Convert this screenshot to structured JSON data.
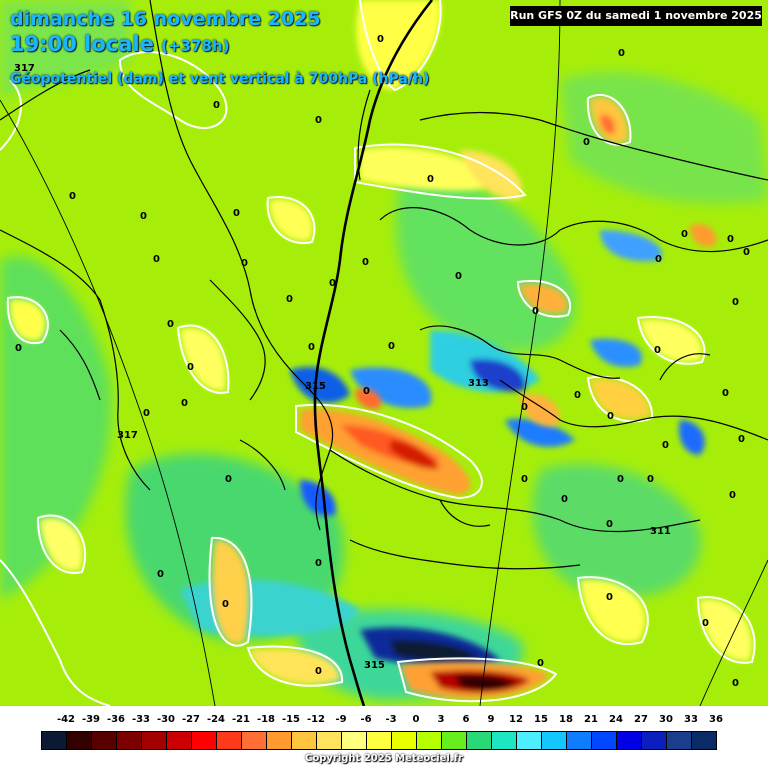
{
  "header": {
    "date_line": "dimanche 16 novembre 2025",
    "time_line": "19:00 locale",
    "lead_time": "(+378h)",
    "parameter_line": "Géopotentiel (dam) et vent vertical à 700hPa (hPa/h)"
  },
  "run_info": "Run GFS 0Z du samedi 1 novembre 2025",
  "copyright": "Copyright 2025 Meteociel.fr",
  "colorscale": {
    "labels": [
      "-42",
      "-39",
      "-36",
      "-33",
      "-30",
      "-27",
      "-24",
      "-21",
      "-18",
      "-15",
      "-12",
      "-9",
      "-6",
      "-3",
      "0",
      "3",
      "6",
      "9",
      "12",
      "15",
      "18",
      "21",
      "24",
      "27",
      "30",
      "33",
      "36"
    ],
    "colors": [
      "#0b1a33",
      "#330000",
      "#580000",
      "#7d0000",
      "#a50000",
      "#cc0000",
      "#ff0000",
      "#ff3a1a",
      "#ff6f35",
      "#ff9a2f",
      "#ffc63d",
      "#ffe35a",
      "#ffff7f",
      "#ffff3f",
      "#e8ff00",
      "#b6ff00",
      "#66ef1d",
      "#29d976",
      "#1de6c3",
      "#4deeff",
      "#14c8ff",
      "#0f7dff",
      "#0046ff",
      "#0000e6",
      "#0a1fbe",
      "#1a3d8c",
      "#0b2b66"
    ]
  },
  "isohypse_labels": [
    "317",
    "313",
    "315",
    "317",
    "311",
    "315"
  ],
  "wind_zero_labels": [
    "0"
  ],
  "colors": {
    "background_field": "#a6ee0a",
    "title_text": "#19b7ff",
    "contour": "#ffffff",
    "borders": "#000000"
  }
}
